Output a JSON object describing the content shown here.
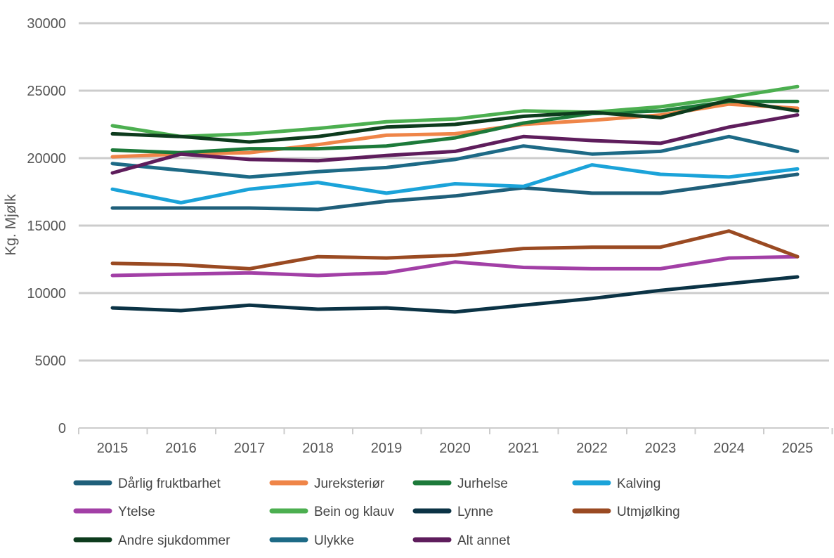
{
  "chart_data": {
    "type": "line",
    "title": "",
    "xlabel": "",
    "ylabel": "Kg. Mjølk",
    "ylim": [
      0,
      30000
    ],
    "yticks": [
      0,
      5000,
      10000,
      15000,
      20000,
      25000,
      30000
    ],
    "x": [
      "2015",
      "2016",
      "2017",
      "2018",
      "2019",
      "2020",
      "2021",
      "2022",
      "2023",
      "2024",
      "2025"
    ],
    "grid": "horizontal",
    "legend": "bottom",
    "series": [
      {
        "name": "Dårlig fruktbarhet",
        "color": "#1f5f7a",
        "values": [
          16300,
          16300,
          16300,
          16200,
          16800,
          17200,
          17800,
          17400,
          17400,
          18100,
          18800
        ]
      },
      {
        "name": "Jureksteriør",
        "color": "#ef8548",
        "values": [
          20100,
          20300,
          20400,
          21000,
          21700,
          21800,
          22500,
          22800,
          23200,
          24000,
          23700
        ]
      },
      {
        "name": "Jurhelse",
        "color": "#1d7a3a",
        "values": [
          20600,
          20400,
          20700,
          20700,
          20900,
          21500,
          22600,
          23300,
          23500,
          24200,
          24200
        ]
      },
      {
        "name": "Kalving",
        "color": "#1ba3d9",
        "values": [
          17700,
          16700,
          17700,
          18200,
          17400,
          18100,
          17900,
          19500,
          18800,
          18600,
          19200
        ]
      },
      {
        "name": "Ytelse",
        "color": "#a23fa6",
        "values": [
          11300,
          11400,
          11500,
          11300,
          11500,
          12300,
          11900,
          11800,
          11800,
          12600,
          12700
        ]
      },
      {
        "name": "Bein og klauv",
        "color": "#4caf50",
        "values": [
          22400,
          21600,
          21800,
          22200,
          22700,
          22900,
          23500,
          23400,
          23800,
          24500,
          25300
        ]
      },
      {
        "name": "Lynne",
        "color": "#0b3345",
        "values": [
          8900,
          8700,
          9100,
          8800,
          8900,
          8600,
          9100,
          9600,
          10200,
          10700,
          11200
        ]
      },
      {
        "name": "Utmjølking",
        "color": "#9a4a22",
        "values": [
          12200,
          12100,
          11800,
          12700,
          12600,
          12800,
          13300,
          13400,
          13400,
          14600,
          12700
        ]
      },
      {
        "name": "Andre sjukdommer",
        "color": "#0d3b1d",
        "values": [
          21800,
          21600,
          21200,
          21600,
          22300,
          22500,
          23100,
          23400,
          23000,
          24300,
          23500
        ]
      },
      {
        "name": "Ulykke",
        "color": "#1d6a86",
        "values": [
          19600,
          19100,
          18600,
          19000,
          19300,
          19900,
          20900,
          20300,
          20500,
          21600,
          20500
        ]
      },
      {
        "name": "Alt annet",
        "color": "#5e1d5c",
        "values": [
          18900,
          20300,
          19900,
          19800,
          20200,
          20500,
          21600,
          21300,
          21100,
          22300,
          23200
        ]
      }
    ]
  }
}
